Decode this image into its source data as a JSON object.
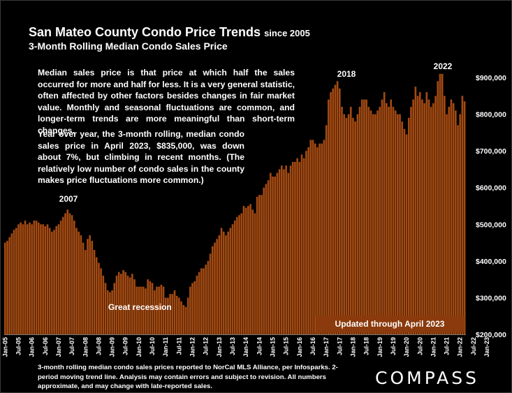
{
  "header": {
    "title": "San Mateo County Condo Price Trends",
    "title_suffix": "since 2005",
    "subtitle": "3-Month Rolling Median Condo Sales Price"
  },
  "notes": {
    "paragraph1": "Median sales price is that price at which half the sales occurred for more and half for less. It is a very general statistic, often affected by other factors besides changes in fair market value. Monthly and seasonal fluctuations are common, and longer-term trends are more meaningful than short-term changes.",
    "paragraph2": "Year over year, the 3-month rolling, median condo sales price in April 2023, $835,000, was down about 7%, but climbing in recent months. (The relatively low number of condo sales in the county makes price fluctuations more common.)"
  },
  "footer": {
    "source": "3-month rolling median condo sales prices reported to NorCal MLS Alliance, per Infosparks. 2-period moving trend line. Analysis may contain errors and subject to revision. All numbers approximate, and may change with late-reported sales.",
    "logo": "COMPASS"
  },
  "colors": {
    "background": "#000000",
    "bar": "#a44a12",
    "bar_edge": "#6a2c08",
    "updated_box": "#8a3a0c"
  },
  "chart_data": {
    "type": "bar",
    "title": "San Mateo County Condo Price Trends since 2005",
    "subtitle": "3-Month Rolling Median Condo Sales Price",
    "ylim": [
      200000,
      950000
    ],
    "y_axis_side": "right",
    "y_ticks": [
      200000,
      300000,
      400000,
      500000,
      600000,
      700000,
      800000,
      900000
    ],
    "y_tick_labels": [
      "$200,000",
      "$300,000",
      "$400,000",
      "$500,000",
      "$600,000",
      "$700,000",
      "$800,000",
      "$900,000"
    ],
    "x_start": "Jan-05",
    "x_end": "Apr-23",
    "x_tick_labels": [
      "Jan-05",
      "Jul-05",
      "Jan-06",
      "Jul-06",
      "Jan-07",
      "Jul-07",
      "Jan-08",
      "Jul-08",
      "Jan-09",
      "Jul-09",
      "Jan-10",
      "Jul-10",
      "Jan-11",
      "Jul-11",
      "Jan-12",
      "Jul-12",
      "Jan-13",
      "Jul-13",
      "Jan-14",
      "Jul-14",
      "Jan-15",
      "Jul-15",
      "Jan-16",
      "Jul-16",
      "Jan-17",
      "Jul-17",
      "Jan-18",
      "Jul-18",
      "Jan-19",
      "Jul-19",
      "Jan-20",
      "Jul-20",
      "Jan-21",
      "Jul-21",
      "Jan-22",
      "Jul-22",
      "Jan-23"
    ],
    "values": [
      450000,
      455000,
      465000,
      475000,
      485000,
      490000,
      500000,
      505000,
      500000,
      510000,
      500000,
      505000,
      500000,
      510000,
      510000,
      505000,
      500000,
      500000,
      495000,
      500000,
      490000,
      480000,
      485000,
      495000,
      500000,
      510000,
      520000,
      530000,
      540000,
      530000,
      525000,
      510000,
      490000,
      480000,
      470000,
      450000,
      430000,
      460000,
      470000,
      455000,
      430000,
      410000,
      395000,
      380000,
      360000,
      340000,
      320000,
      315000,
      320000,
      340000,
      360000,
      370000,
      365000,
      375000,
      370000,
      360000,
      355000,
      365000,
      350000,
      330000,
      330000,
      330000,
      330000,
      325000,
      350000,
      345000,
      340000,
      320000,
      330000,
      330000,
      335000,
      330000,
      300000,
      300000,
      310000,
      310000,
      320000,
      305000,
      300000,
      290000,
      280000,
      275000,
      300000,
      330000,
      340000,
      345000,
      360000,
      370000,
      380000,
      380000,
      390000,
      400000,
      420000,
      440000,
      450000,
      460000,
      470000,
      490000,
      480000,
      470000,
      480000,
      490000,
      500000,
      510000,
      520000,
      525000,
      530000,
      550000,
      545000,
      550000,
      555000,
      540000,
      530000,
      575000,
      580000,
      580000,
      600000,
      610000,
      620000,
      640000,
      630000,
      630000,
      640000,
      650000,
      660000,
      650000,
      660000,
      640000,
      660000,
      670000,
      670000,
      680000,
      670000,
      690000,
      680000,
      700000,
      710000,
      730000,
      730000,
      720000,
      710000,
      720000,
      720000,
      730000,
      770000,
      840000,
      860000,
      870000,
      880000,
      890000,
      870000,
      820000,
      800000,
      790000,
      800000,
      820000,
      790000,
      780000,
      800000,
      820000,
      840000,
      840000,
      840000,
      820000,
      810000,
      800000,
      800000,
      810000,
      820000,
      840000,
      860000,
      830000,
      820000,
      840000,
      820000,
      810000,
      800000,
      800000,
      780000,
      760000,
      745000,
      790000,
      820000,
      840000,
      875000,
      850000,
      860000,
      840000,
      830000,
      860000,
      840000,
      820000,
      830000,
      850000,
      890000,
      910000,
      910000,
      850000,
      800000,
      820000,
      840000,
      830000,
      810000,
      770000,
      800000,
      850000,
      835000
    ],
    "annotations": [
      "2007",
      "2018",
      "2022",
      "Great recession"
    ],
    "updated_label": "Updated through April 2023",
    "grid": false,
    "legend": "none"
  }
}
